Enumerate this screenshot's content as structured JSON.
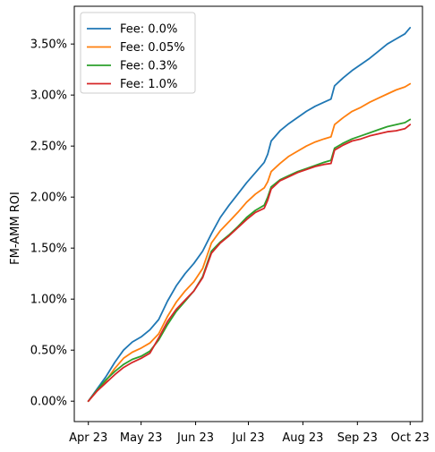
{
  "chart_data": {
    "type": "line",
    "title": "",
    "xlabel": "",
    "ylabel": "FM-AMM ROI",
    "xlim": [
      "2023-03-24",
      "2023-10-08"
    ],
    "ylim": [
      -0.2,
      3.87
    ],
    "x_ticks": [
      {
        "date": "2023-04-01",
        "label": "Apr 23"
      },
      {
        "date": "2023-05-01",
        "label": "May 23"
      },
      {
        "date": "2023-06-01",
        "label": "Jun 23"
      },
      {
        "date": "2023-07-01",
        "label": "Jul 23"
      },
      {
        "date": "2023-08-01",
        "label": "Aug 23"
      },
      {
        "date": "2023-09-01",
        "label": "Sep 23"
      },
      {
        "date": "2023-10-01",
        "label": "Oct 23"
      }
    ],
    "y_ticks": [
      {
        "value": 0.0,
        "label": "0.00%"
      },
      {
        "value": 0.5,
        "label": "0.50%"
      },
      {
        "value": 1.0,
        "label": "1.00%"
      },
      {
        "value": 1.5,
        "label": "1.50%"
      },
      {
        "value": 2.0,
        "label": "2.00%"
      },
      {
        "value": 2.5,
        "label": "2.50%"
      },
      {
        "value": 3.0,
        "label": "3.00%"
      },
      {
        "value": 3.5,
        "label": "3.50%"
      }
    ],
    "grid": false,
    "legend": "top-left",
    "series": [
      {
        "name": "Fee: 0.0%",
        "color": "#1f77b4",
        "points": [
          [
            "2023-04-01",
            0.0
          ],
          [
            "2023-04-06",
            0.12
          ],
          [
            "2023-04-11",
            0.24
          ],
          [
            "2023-04-16",
            0.38
          ],
          [
            "2023-04-21",
            0.5
          ],
          [
            "2023-04-26",
            0.58
          ],
          [
            "2023-05-01",
            0.63
          ],
          [
            "2023-05-06",
            0.7
          ],
          [
            "2023-05-11",
            0.8
          ],
          [
            "2023-05-16",
            0.98
          ],
          [
            "2023-05-21",
            1.13
          ],
          [
            "2023-05-26",
            1.25
          ],
          [
            "2023-05-31",
            1.35
          ],
          [
            "2023-06-05",
            1.47
          ],
          [
            "2023-06-10",
            1.64
          ],
          [
            "2023-06-15",
            1.8
          ],
          [
            "2023-06-20",
            1.92
          ],
          [
            "2023-06-25",
            2.03
          ],
          [
            "2023-06-30",
            2.14
          ],
          [
            "2023-07-05",
            2.24
          ],
          [
            "2023-07-10",
            2.34
          ],
          [
            "2023-07-12",
            2.42
          ],
          [
            "2023-07-14",
            2.55
          ],
          [
            "2023-07-19",
            2.65
          ],
          [
            "2023-07-24",
            2.72
          ],
          [
            "2023-07-29",
            2.78
          ],
          [
            "2023-08-03",
            2.84
          ],
          [
            "2023-08-08",
            2.89
          ],
          [
            "2023-08-13",
            2.93
          ],
          [
            "2023-08-17",
            2.96
          ],
          [
            "2023-08-19",
            3.09
          ],
          [
            "2023-08-24",
            3.17
          ],
          [
            "2023-08-29",
            3.24
          ],
          [
            "2023-09-03",
            3.3
          ],
          [
            "2023-09-08",
            3.36
          ],
          [
            "2023-09-13",
            3.43
          ],
          [
            "2023-09-18",
            3.5
          ],
          [
            "2023-09-23",
            3.55
          ],
          [
            "2023-09-28",
            3.6
          ],
          [
            "2023-10-01",
            3.66
          ]
        ]
      },
      {
        "name": "Fee: 0.05%",
        "color": "#ff7f0e",
        "points": [
          [
            "2023-04-01",
            0.0
          ],
          [
            "2023-04-06",
            0.1
          ],
          [
            "2023-04-11",
            0.2
          ],
          [
            "2023-04-16",
            0.32
          ],
          [
            "2023-04-21",
            0.42
          ],
          [
            "2023-04-26",
            0.48
          ],
          [
            "2023-05-01",
            0.52
          ],
          [
            "2023-05-06",
            0.57
          ],
          [
            "2023-05-11",
            0.66
          ],
          [
            "2023-05-16",
            0.83
          ],
          [
            "2023-05-21",
            0.97
          ],
          [
            "2023-05-26",
            1.08
          ],
          [
            "2023-05-31",
            1.17
          ],
          [
            "2023-06-05",
            1.3
          ],
          [
            "2023-06-10",
            1.55
          ],
          [
            "2023-06-15",
            1.67
          ],
          [
            "2023-06-20",
            1.76
          ],
          [
            "2023-06-25",
            1.85
          ],
          [
            "2023-06-30",
            1.95
          ],
          [
            "2023-07-05",
            2.03
          ],
          [
            "2023-07-10",
            2.09
          ],
          [
            "2023-07-12",
            2.15
          ],
          [
            "2023-07-14",
            2.25
          ],
          [
            "2023-07-19",
            2.33
          ],
          [
            "2023-07-24",
            2.4
          ],
          [
            "2023-07-29",
            2.45
          ],
          [
            "2023-08-03",
            2.5
          ],
          [
            "2023-08-08",
            2.54
          ],
          [
            "2023-08-13",
            2.57
          ],
          [
            "2023-08-17",
            2.59
          ],
          [
            "2023-08-19",
            2.71
          ],
          [
            "2023-08-24",
            2.78
          ],
          [
            "2023-08-29",
            2.84
          ],
          [
            "2023-09-03",
            2.88
          ],
          [
            "2023-09-08",
            2.93
          ],
          [
            "2023-09-13",
            2.97
          ],
          [
            "2023-09-18",
            3.01
          ],
          [
            "2023-09-23",
            3.05
          ],
          [
            "2023-09-28",
            3.08
          ],
          [
            "2023-10-01",
            3.11
          ]
        ]
      },
      {
        "name": "Fee: 0.3%",
        "color": "#2ca02c",
        "points": [
          [
            "2023-04-01",
            0.0
          ],
          [
            "2023-04-06",
            0.11
          ],
          [
            "2023-04-11",
            0.21
          ],
          [
            "2023-04-16",
            0.29
          ],
          [
            "2023-04-21",
            0.36
          ],
          [
            "2023-04-26",
            0.41
          ],
          [
            "2023-05-01",
            0.44
          ],
          [
            "2023-05-06",
            0.49
          ],
          [
            "2023-05-11",
            0.6
          ],
          [
            "2023-05-16",
            0.75
          ],
          [
            "2023-05-21",
            0.88
          ],
          [
            "2023-05-26",
            0.98
          ],
          [
            "2023-05-31",
            1.08
          ],
          [
            "2023-06-05",
            1.22
          ],
          [
            "2023-06-10",
            1.47
          ],
          [
            "2023-06-15",
            1.56
          ],
          [
            "2023-06-20",
            1.63
          ],
          [
            "2023-06-25",
            1.71
          ],
          [
            "2023-06-30",
            1.8
          ],
          [
            "2023-07-05",
            1.87
          ],
          [
            "2023-07-10",
            1.92
          ],
          [
            "2023-07-12",
            2.0
          ],
          [
            "2023-07-14",
            2.1
          ],
          [
            "2023-07-19",
            2.17
          ],
          [
            "2023-07-24",
            2.21
          ],
          [
            "2023-07-29",
            2.25
          ],
          [
            "2023-08-03",
            2.28
          ],
          [
            "2023-08-08",
            2.31
          ],
          [
            "2023-08-13",
            2.34
          ],
          [
            "2023-08-17",
            2.36
          ],
          [
            "2023-08-19",
            2.48
          ],
          [
            "2023-08-24",
            2.53
          ],
          [
            "2023-08-29",
            2.57
          ],
          [
            "2023-09-03",
            2.6
          ],
          [
            "2023-09-08",
            2.63
          ],
          [
            "2023-09-13",
            2.66
          ],
          [
            "2023-09-18",
            2.69
          ],
          [
            "2023-09-23",
            2.71
          ],
          [
            "2023-09-28",
            2.73
          ],
          [
            "2023-10-01",
            2.76
          ]
        ]
      },
      {
        "name": "Fee: 1.0%",
        "color": "#d62728",
        "points": [
          [
            "2023-04-01",
            0.0
          ],
          [
            "2023-04-06",
            0.1
          ],
          [
            "2023-04-11",
            0.18
          ],
          [
            "2023-04-16",
            0.26
          ],
          [
            "2023-04-21",
            0.33
          ],
          [
            "2023-04-26",
            0.38
          ],
          [
            "2023-05-01",
            0.42
          ],
          [
            "2023-05-06",
            0.47
          ],
          [
            "2023-05-11",
            0.62
          ],
          [
            "2023-05-16",
            0.78
          ],
          [
            "2023-05-21",
            0.9
          ],
          [
            "2023-05-26",
            0.99
          ],
          [
            "2023-05-31",
            1.08
          ],
          [
            "2023-06-05",
            1.21
          ],
          [
            "2023-06-10",
            1.45
          ],
          [
            "2023-06-15",
            1.55
          ],
          [
            "2023-06-20",
            1.62
          ],
          [
            "2023-06-25",
            1.7
          ],
          [
            "2023-06-30",
            1.78
          ],
          [
            "2023-07-05",
            1.85
          ],
          [
            "2023-07-10",
            1.89
          ],
          [
            "2023-07-12",
            1.97
          ],
          [
            "2023-07-14",
            2.08
          ],
          [
            "2023-07-19",
            2.16
          ],
          [
            "2023-07-24",
            2.2
          ],
          [
            "2023-07-29",
            2.24
          ],
          [
            "2023-08-03",
            2.27
          ],
          [
            "2023-08-08",
            2.3
          ],
          [
            "2023-08-13",
            2.32
          ],
          [
            "2023-08-17",
            2.33
          ],
          [
            "2023-08-19",
            2.46
          ],
          [
            "2023-08-24",
            2.51
          ],
          [
            "2023-08-29",
            2.55
          ],
          [
            "2023-09-03",
            2.57
          ],
          [
            "2023-09-08",
            2.6
          ],
          [
            "2023-09-13",
            2.62
          ],
          [
            "2023-09-18",
            2.64
          ],
          [
            "2023-09-23",
            2.65
          ],
          [
            "2023-09-28",
            2.67
          ],
          [
            "2023-10-01",
            2.71
          ]
        ]
      }
    ]
  }
}
